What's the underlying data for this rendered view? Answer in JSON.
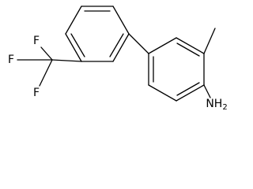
{
  "atoms": {
    "fluorine": [
      "F",
      "F",
      "F"
    ],
    "amine": {
      "label": "NH",
      "subscript": "2"
    }
  }
}
